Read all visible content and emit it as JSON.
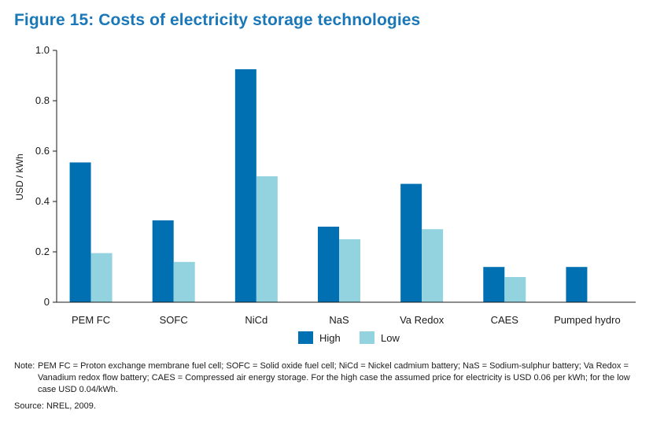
{
  "title": "Figure 15: Costs of electricity storage technologies",
  "note_label": "Note:",
  "note_text": "PEM FC = Proton exchange membrane fuel cell; SOFC = Solid oxide fuel cell; NiCd = Nickel cadmium battery; NaS = Sodium-sulphur battery; Va Redox = Vanadium redox flow battery; CAES = Compressed air energy storage. For the high case the assumed price for electricity is USD 0.06 per kWh; for the low case USD 0.04/kWh.",
  "source": "Source: NREL, 2009.",
  "colors": {
    "high": "#0070b3",
    "low": "#92d3df",
    "axis": "#1a1a1a",
    "title": "#1a78b8"
  },
  "chart_data": {
    "type": "bar",
    "title": "Figure 15: Costs of electricity storage technologies",
    "xlabel": "",
    "ylabel": "USD / kWh",
    "ylim": [
      0,
      1.0
    ],
    "yticks": [
      0,
      0.2,
      0.4,
      0.6,
      0.8,
      1.0
    ],
    "ytick_labels": [
      "0",
      "0.2",
      "0.4",
      "0.6",
      "0.8",
      "1.0"
    ],
    "grid": false,
    "legend_position": "bottom-center",
    "categories": [
      "PEM FC",
      "SOFC",
      "NiCd",
      "NaS",
      "Va Redox",
      "CAES",
      "Pumped hydro"
    ],
    "series": [
      {
        "name": "High",
        "values": [
          0.555,
          0.325,
          0.925,
          0.3,
          0.47,
          0.14,
          0.14
        ]
      },
      {
        "name": "Low",
        "values": [
          0.195,
          0.16,
          0.5,
          0.25,
          0.29,
          0.1,
          null
        ]
      }
    ]
  }
}
